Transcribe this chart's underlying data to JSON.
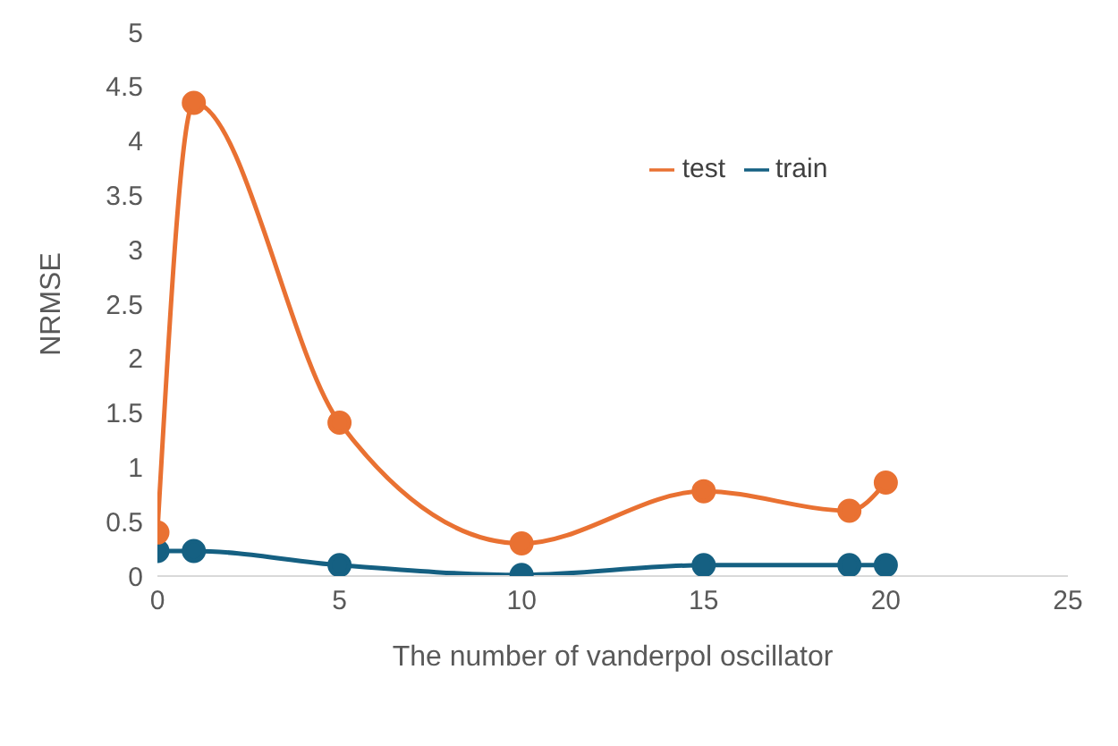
{
  "chart_data": {
    "type": "line",
    "xlabel": "The number of vanderpol oscillator",
    "ylabel": "NRMSE",
    "x": [
      0,
      1,
      5,
      10,
      15,
      19,
      20
    ],
    "series": [
      {
        "name": "train",
        "color": "#156082",
        "values": [
          0.23,
          0.23,
          0.1,
          0.01,
          0.1,
          0.1,
          0.1
        ]
      },
      {
        "name": "test",
        "color": "#e97132",
        "values": [
          0.4,
          4.35,
          1.41,
          0.3,
          0.78,
          0.6,
          0.86
        ]
      }
    ],
    "xlim": [
      0,
      25
    ],
    "xticks": [
      0,
      5,
      10,
      15,
      20,
      25
    ],
    "ylim": [
      0,
      5
    ],
    "yticks": [
      0,
      0.5,
      1,
      1.5,
      2,
      2.5,
      3,
      3.5,
      4,
      4.5,
      5
    ],
    "grid": false,
    "legend": "top right",
    "marker": "circle",
    "line_style": "solid"
  }
}
